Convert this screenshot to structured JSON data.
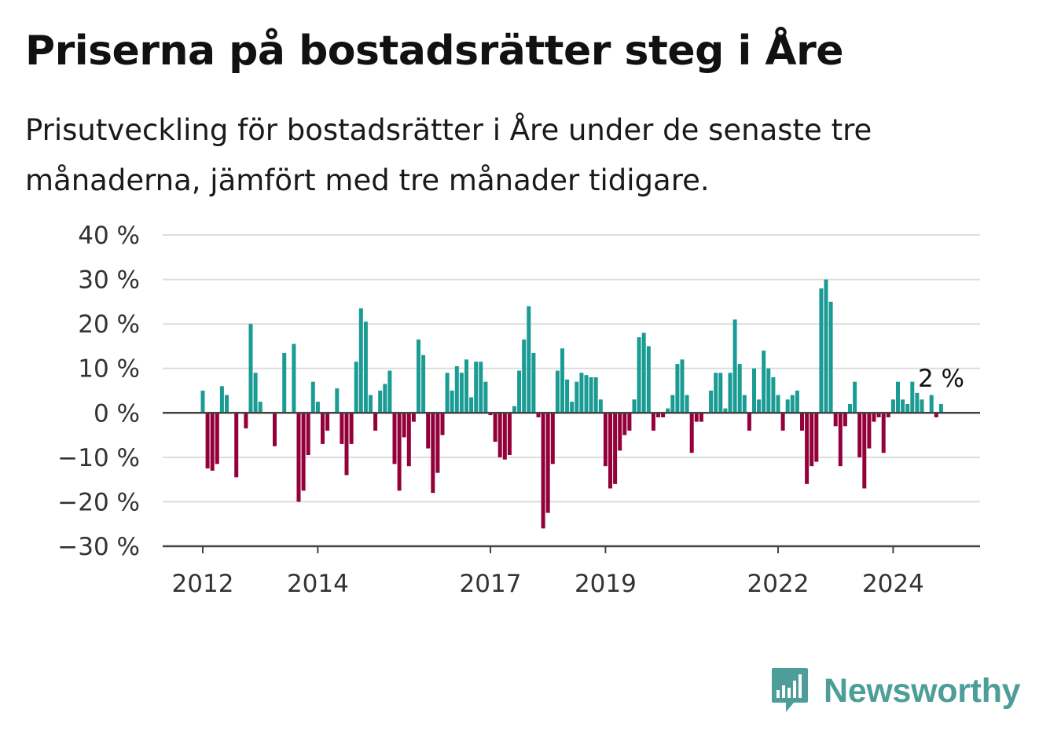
{
  "header": {
    "title": "Priserna på bostadsrätter steg i Åre",
    "subtitle": "Prisutveckling för bostadsrätter i Åre under de senaste tre månaderna, jämfört med tre månader tidigare."
  },
  "brand": {
    "name": "Newsworthy",
    "color": "#4d9e99"
  },
  "chart_data": {
    "type": "bar",
    "title": "Priserna på bostadsrätter steg i Åre",
    "subtitle": "Prisutveckling för bostadsrätter i Åre under de senaste tre månaderna, jämfört med tre månader tidigare.",
    "xlabel": "",
    "ylabel": "",
    "ylim": [
      -30,
      40
    ],
    "y_ticks": [
      40,
      30,
      20,
      10,
      0,
      -10,
      -20,
      -30
    ],
    "y_tick_labels": [
      "40 %",
      "30 %",
      "20 %",
      "10 %",
      "0 %",
      "−10 %",
      "−20 %",
      "−30 %"
    ],
    "x_ticks": [
      {
        "label": "2012",
        "index": 0
      },
      {
        "label": "2014",
        "index": 24
      },
      {
        "label": "2017",
        "index": 60
      },
      {
        "label": "2019",
        "index": 84
      },
      {
        "label": "2022",
        "index": 120
      },
      {
        "label": "2024",
        "index": 144
      }
    ],
    "grid": true,
    "positive_color": "#1a9b93",
    "negative_color": "#93003a",
    "annotation": {
      "text": "2 %",
      "index": 155
    },
    "values": [
      5,
      -12.5,
      -13,
      -11.5,
      6,
      4,
      0,
      -14.5,
      0,
      -3.5,
      20,
      9,
      2.5,
      0,
      0,
      -7.5,
      0,
      13.5,
      0,
      15.5,
      -20,
      -17.5,
      -9.5,
      7,
      2.5,
      -7,
      -4,
      0,
      5.5,
      -7,
      -14,
      -7,
      11.5,
      23.5,
      20.5,
      4,
      -4,
      5,
      6.5,
      9.5,
      -11.5,
      -17.5,
      -5.5,
      -12,
      -2,
      16.5,
      13,
      -8,
      -18,
      -13.5,
      -5,
      9,
      5,
      10.5,
      9,
      12,
      3.5,
      11.5,
      11.5,
      7,
      -0.5,
      -6.5,
      -10,
      -10.5,
      -9.5,
      1.5,
      9.5,
      16.5,
      24,
      13.5,
      -1,
      -26,
      -22.5,
      -11.5,
      9.5,
      14.5,
      7.5,
      2.5,
      7,
      9,
      8.5,
      8,
      8,
      3,
      -12,
      -17,
      -16,
      -8.5,
      -5,
      -4,
      3,
      17,
      18,
      15,
      -4,
      -1,
      -1,
      1,
      4,
      11,
      12,
      4,
      -9,
      -2,
      -2,
      0,
      5,
      9,
      9,
      1,
      9,
      21,
      11,
      4,
      -4,
      10,
      3,
      14,
      10,
      8,
      4,
      -4,
      3,
      4,
      5,
      -4,
      -16,
      -12,
      -11,
      28,
      30,
      25,
      -3,
      -12,
      -3,
      2,
      7,
      -10,
      -17,
      -8,
      -2,
      -1,
      -9,
      -1,
      3,
      7,
      3,
      2,
      7,
      4.5,
      3,
      0,
      4,
      -1,
      2
    ]
  }
}
